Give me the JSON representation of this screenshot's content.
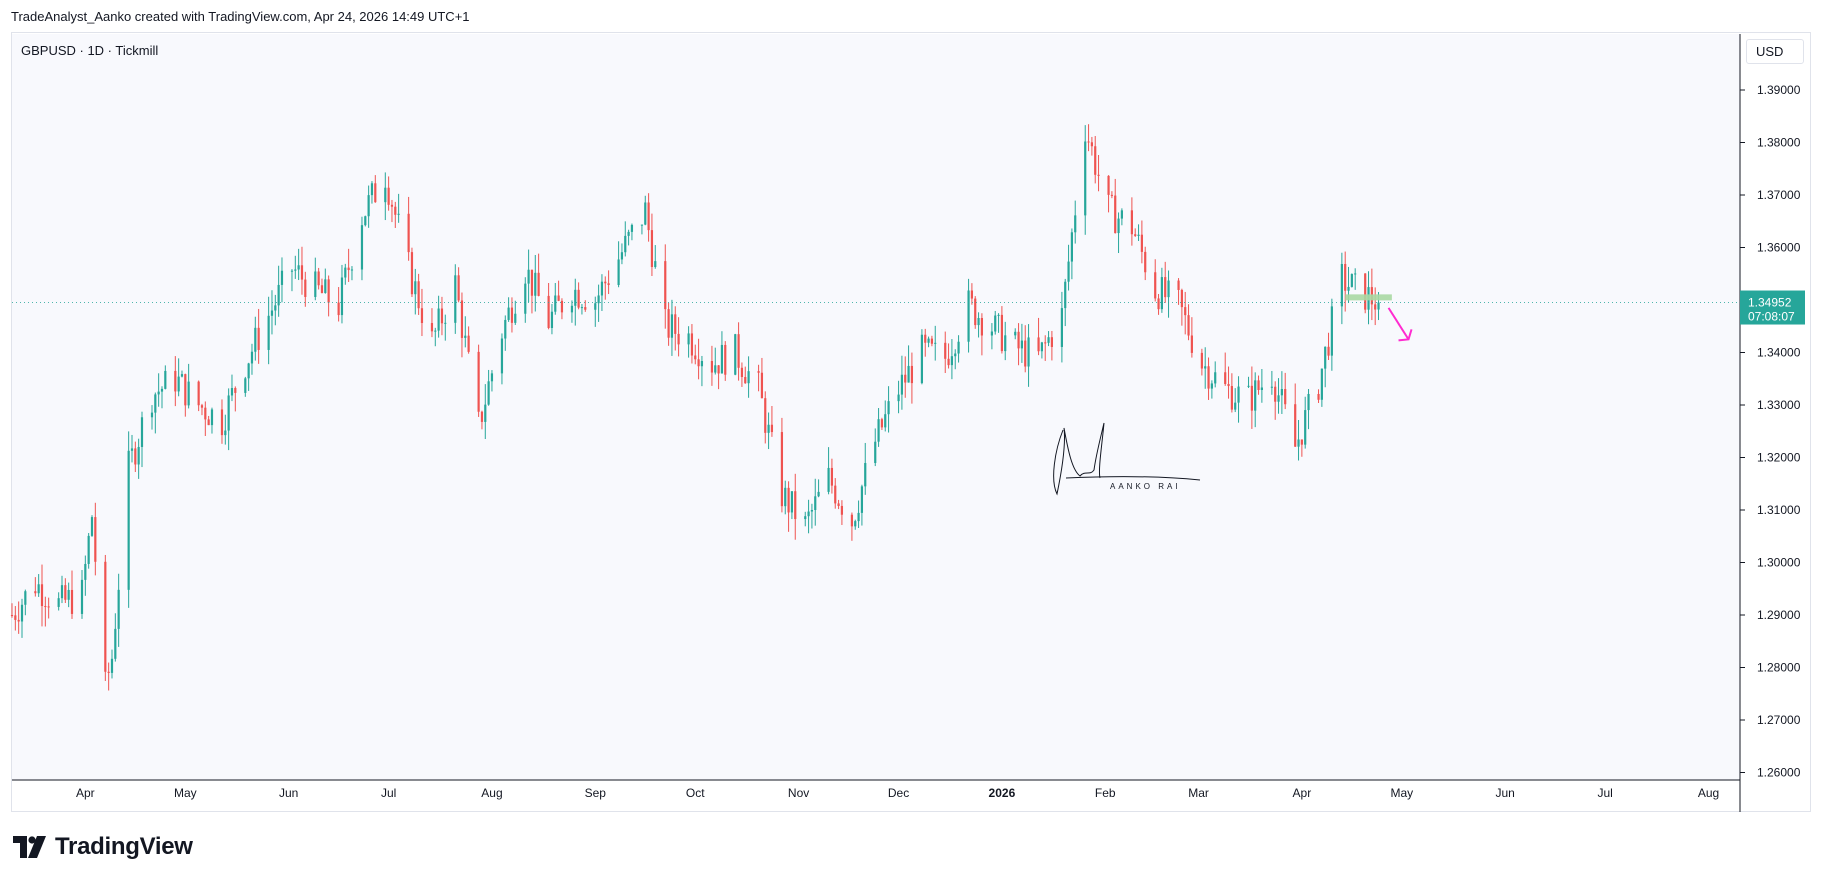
{
  "caption": "TradeAnalyst_Aanko created with TradingView.com, Apr 24, 2026 14:49 UTC+1",
  "symbol": "GBPUSD · 1D · Tickmill",
  "currency": "USD",
  "brand": "TradingView",
  "signature_text": "AANKO RAI",
  "colors": {
    "up": "#26a69a",
    "down": "#ef5350",
    "price_label_bg": "#26a69a",
    "arrow": "#ff2bd0",
    "zone": "#a8d8a3",
    "axis_line": "#131722",
    "grid": "#f0f3fa"
  },
  "chart_data": {
    "type": "candlestick",
    "title": "GBPUSD · 1D · Tickmill",
    "xlabel": "",
    "ylabel": "",
    "ylim": [
      1.26,
      1.39
    ],
    "y_ticks": [
      "1.39000",
      "1.38000",
      "1.37000",
      "1.36000",
      "1.35000",
      "1.34000",
      "1.33000",
      "1.32000",
      "1.31000",
      "1.30000",
      "1.29000",
      "1.28000",
      "1.27000",
      "1.26000"
    ],
    "x_ticks": [
      "Apr",
      "May",
      "Jun",
      "Jul",
      "Aug",
      "Sep",
      "Oct",
      "Nov",
      "Dec",
      "2026",
      "Feb",
      "Mar",
      "Apr",
      "May",
      "Jun",
      "Jul",
      "Aug"
    ],
    "x_tick_bold": "2026",
    "last_price": "1.34952",
    "countdown": "07:08:07",
    "annotations": {
      "resistance_zone_price": 1.3505,
      "projection": "down arrow",
      "signature": "AANKO RAI"
    },
    "close_path": [
      [
        "2025-03-10",
        1.29
      ],
      [
        "2025-03-17",
        1.296
      ],
      [
        "2025-03-24",
        1.292
      ],
      [
        "2025-03-31",
        1.294
      ],
      [
        "2025-04-03",
        1.309
      ],
      [
        "2025-04-07",
        1.276
      ],
      [
        "2025-04-09",
        1.282
      ],
      [
        "2025-04-14",
        1.318
      ],
      [
        "2025-04-21",
        1.332
      ],
      [
        "2025-04-28",
        1.335
      ],
      [
        "2025-05-05",
        1.33
      ],
      [
        "2025-05-12",
        1.327
      ],
      [
        "2025-05-19",
        1.338
      ],
      [
        "2025-05-26",
        1.347
      ],
      [
        "2025-06-02",
        1.356
      ],
      [
        "2025-06-09",
        1.352
      ],
      [
        "2025-06-16",
        1.349
      ],
      [
        "2025-06-23",
        1.366
      ],
      [
        "2025-06-30",
        1.374
      ],
      [
        "2025-07-07",
        1.356
      ],
      [
        "2025-07-14",
        1.342
      ],
      [
        "2025-07-21",
        1.353
      ],
      [
        "2025-07-28",
        1.326
      ],
      [
        "2025-08-04",
        1.344
      ],
      [
        "2025-08-11",
        1.356
      ],
      [
        "2025-08-18",
        1.346
      ],
      [
        "2025-08-25",
        1.352
      ],
      [
        "2025-09-01",
        1.35
      ],
      [
        "2025-09-08",
        1.358
      ],
      [
        "2025-09-16",
        1.367
      ],
      [
        "2025-09-22",
        1.345
      ],
      [
        "2025-09-29",
        1.343
      ],
      [
        "2025-10-06",
        1.338
      ],
      [
        "2025-10-13",
        1.34
      ],
      [
        "2025-10-20",
        1.333
      ],
      [
        "2025-10-27",
        1.313
      ],
      [
        "2025-11-03",
        1.307
      ],
      [
        "2025-11-10",
        1.316
      ],
      [
        "2025-11-17",
        1.308
      ],
      [
        "2025-11-24",
        1.323
      ],
      [
        "2025-12-01",
        1.333
      ],
      [
        "2025-12-08",
        1.34
      ],
      [
        "2025-12-15",
        1.339
      ],
      [
        "2025-12-22",
        1.349
      ],
      [
        "2025-12-29",
        1.345
      ],
      [
        "2026-01-05",
        1.341
      ],
      [
        "2026-01-12",
        1.339
      ],
      [
        "2026-01-19",
        1.347
      ],
      [
        "2026-01-26",
        1.383
      ],
      [
        "2026-02-02",
        1.367
      ],
      [
        "2026-02-09",
        1.364
      ],
      [
        "2026-02-16",
        1.352
      ],
      [
        "2026-02-23",
        1.349
      ],
      [
        "2026-03-02",
        1.338
      ],
      [
        "2026-03-09",
        1.333
      ],
      [
        "2026-03-16",
        1.331
      ],
      [
        "2026-03-23",
        1.336
      ],
      [
        "2026-03-30",
        1.322
      ],
      [
        "2026-04-06",
        1.334
      ],
      [
        "2026-04-13",
        1.354
      ],
      [
        "2026-04-17",
        1.352
      ],
      [
        "2026-04-24",
        1.3495
      ]
    ]
  }
}
